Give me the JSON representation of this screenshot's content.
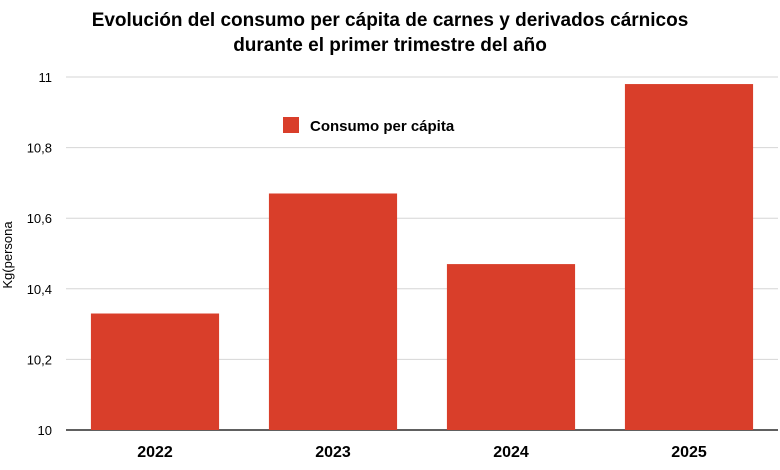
{
  "chart_data": {
    "type": "bar",
    "title": "Evolución del consumo per cápita de carnes y derivados cárnicos\ndurante el primer trimestre del año",
    "categories": [
      "2022",
      "2023",
      "2024",
      "2025"
    ],
    "series": [
      {
        "name": "Consumo per cápita",
        "values": [
          10.33,
          10.67,
          10.47,
          10.98
        ],
        "color": "#d93e2a"
      }
    ],
    "xlabel": "",
    "ylabel": "Kg(persona",
    "ylim": [
      10,
      11
    ],
    "yticks": [
      "10",
      "10,2",
      "10,4",
      "10,6",
      "10,8",
      "11"
    ],
    "grid": true,
    "legend_position": "top-center"
  }
}
